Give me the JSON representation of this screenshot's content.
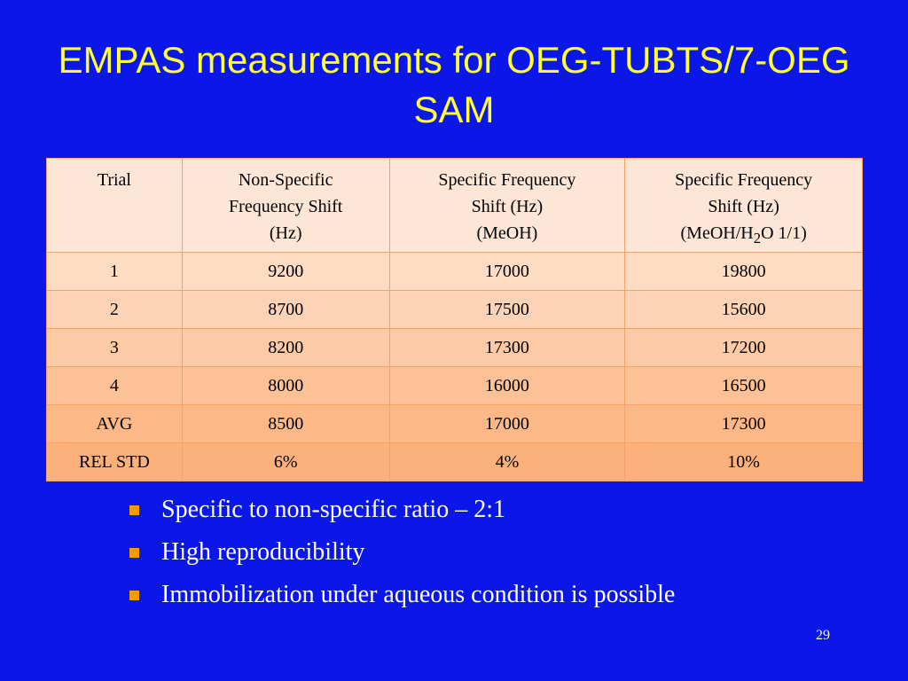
{
  "title": "EMPAS measurements for OEG-TUBTS/7-OEG SAM",
  "table": {
    "headers": [
      {
        "lines": [
          "Trial"
        ]
      },
      {
        "lines": [
          "Non-Specific",
          "Frequency Shift",
          "(Hz)"
        ]
      },
      {
        "lines": [
          "Specific Frequency",
          "Shift (Hz)",
          "(MeOH)"
        ]
      },
      {
        "lines": [
          "Specific Frequency",
          "Shift (Hz)"
        ],
        "last_line": {
          "before": "(MeOH/H",
          "subscript": "2",
          "after": "O 1/1)"
        }
      }
    ],
    "rows": [
      [
        "1",
        "9200",
        "17000",
        "19800"
      ],
      [
        "2",
        "8700",
        "17500",
        "15600"
      ],
      [
        "3",
        "8200",
        "17300",
        "17200"
      ],
      [
        "4",
        "8000",
        "16000",
        "16500"
      ],
      [
        "AVG",
        "8500",
        "17000",
        "17300"
      ],
      [
        "REL STD",
        "6%",
        "4%",
        "10%"
      ]
    ]
  },
  "bullets": [
    "Specific to non-specific ratio – 2:1",
    "High reproducibility",
    "Immobilization under aqueous condition is possible"
  ],
  "page_number": "29",
  "colors": {
    "background": "#0b16e9",
    "title": "#ffff33",
    "bullet_marker": "#ff9900",
    "table_border": "#f3a36a"
  }
}
